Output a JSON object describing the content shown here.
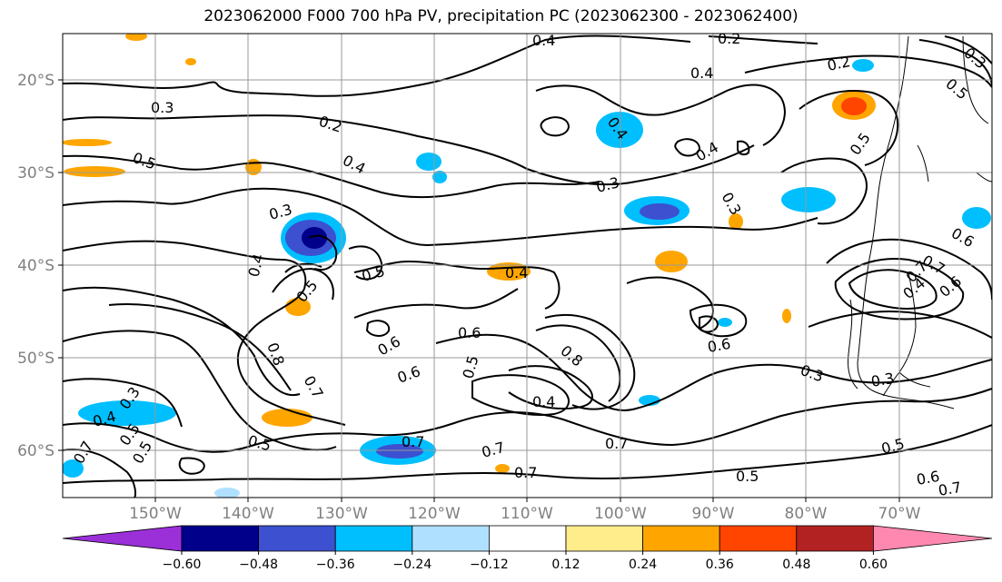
{
  "title": "2023062000 F000 700 hPa PV, precipitation PC (2023062300 - 2023062400)",
  "colors": {
    "grid": "#999999",
    "contour": "#000000",
    "coast": "#000000"
  },
  "map": {
    "lon_range": [
      -160,
      -60
    ],
    "lat_range": [
      -65,
      -15
    ],
    "lat_ticks": [
      "20°S",
      "30°S",
      "40°S",
      "50°S",
      "60°S"
    ],
    "lon_ticks": [
      "150°W",
      "140°W",
      "130°W",
      "120°W",
      "110°W",
      "100°W",
      "90°W",
      "80°W",
      "70°W"
    ]
  },
  "contour_labels": [
    "0.4",
    "0.2",
    "0.3",
    "0.2",
    "0.4",
    "0.2",
    "0.3",
    "0.5",
    "0.4",
    "0.4",
    "0.4",
    "0.5",
    "0.3",
    "0.3",
    "0.5",
    "0.3",
    "0.4",
    "0.5",
    "0.5",
    "0.4",
    "0.7",
    "0.6",
    "0.4",
    "0.6",
    "0.6",
    "0.6",
    "0.7",
    "0.6",
    "0.8",
    "0.7",
    "0.5",
    "0.8",
    "0.4",
    "0.6",
    "0.3",
    "0.4",
    "0.5",
    "0.7",
    "0.7",
    "0.7",
    "0.7",
    "0.5",
    "0.5",
    "0.6",
    "0.7",
    "0.5",
    "0.3",
    "0.7",
    "0.5",
    "0.3"
  ],
  "colorbar": {
    "colors": [
      "#9b30d9",
      "#00008b",
      "#3c50d0",
      "#00bfff",
      "#b0e0ff",
      "#ffffff",
      "#ffec8b",
      "#ffa500",
      "#ff4500",
      "#b22222",
      "#ff88b0"
    ],
    "tick_labels": [
      "−0.60",
      "−0.48",
      "−0.36",
      "−0.24",
      "−0.12",
      "0.12",
      "0.24",
      "0.36",
      "0.48",
      "0.60"
    ]
  }
}
